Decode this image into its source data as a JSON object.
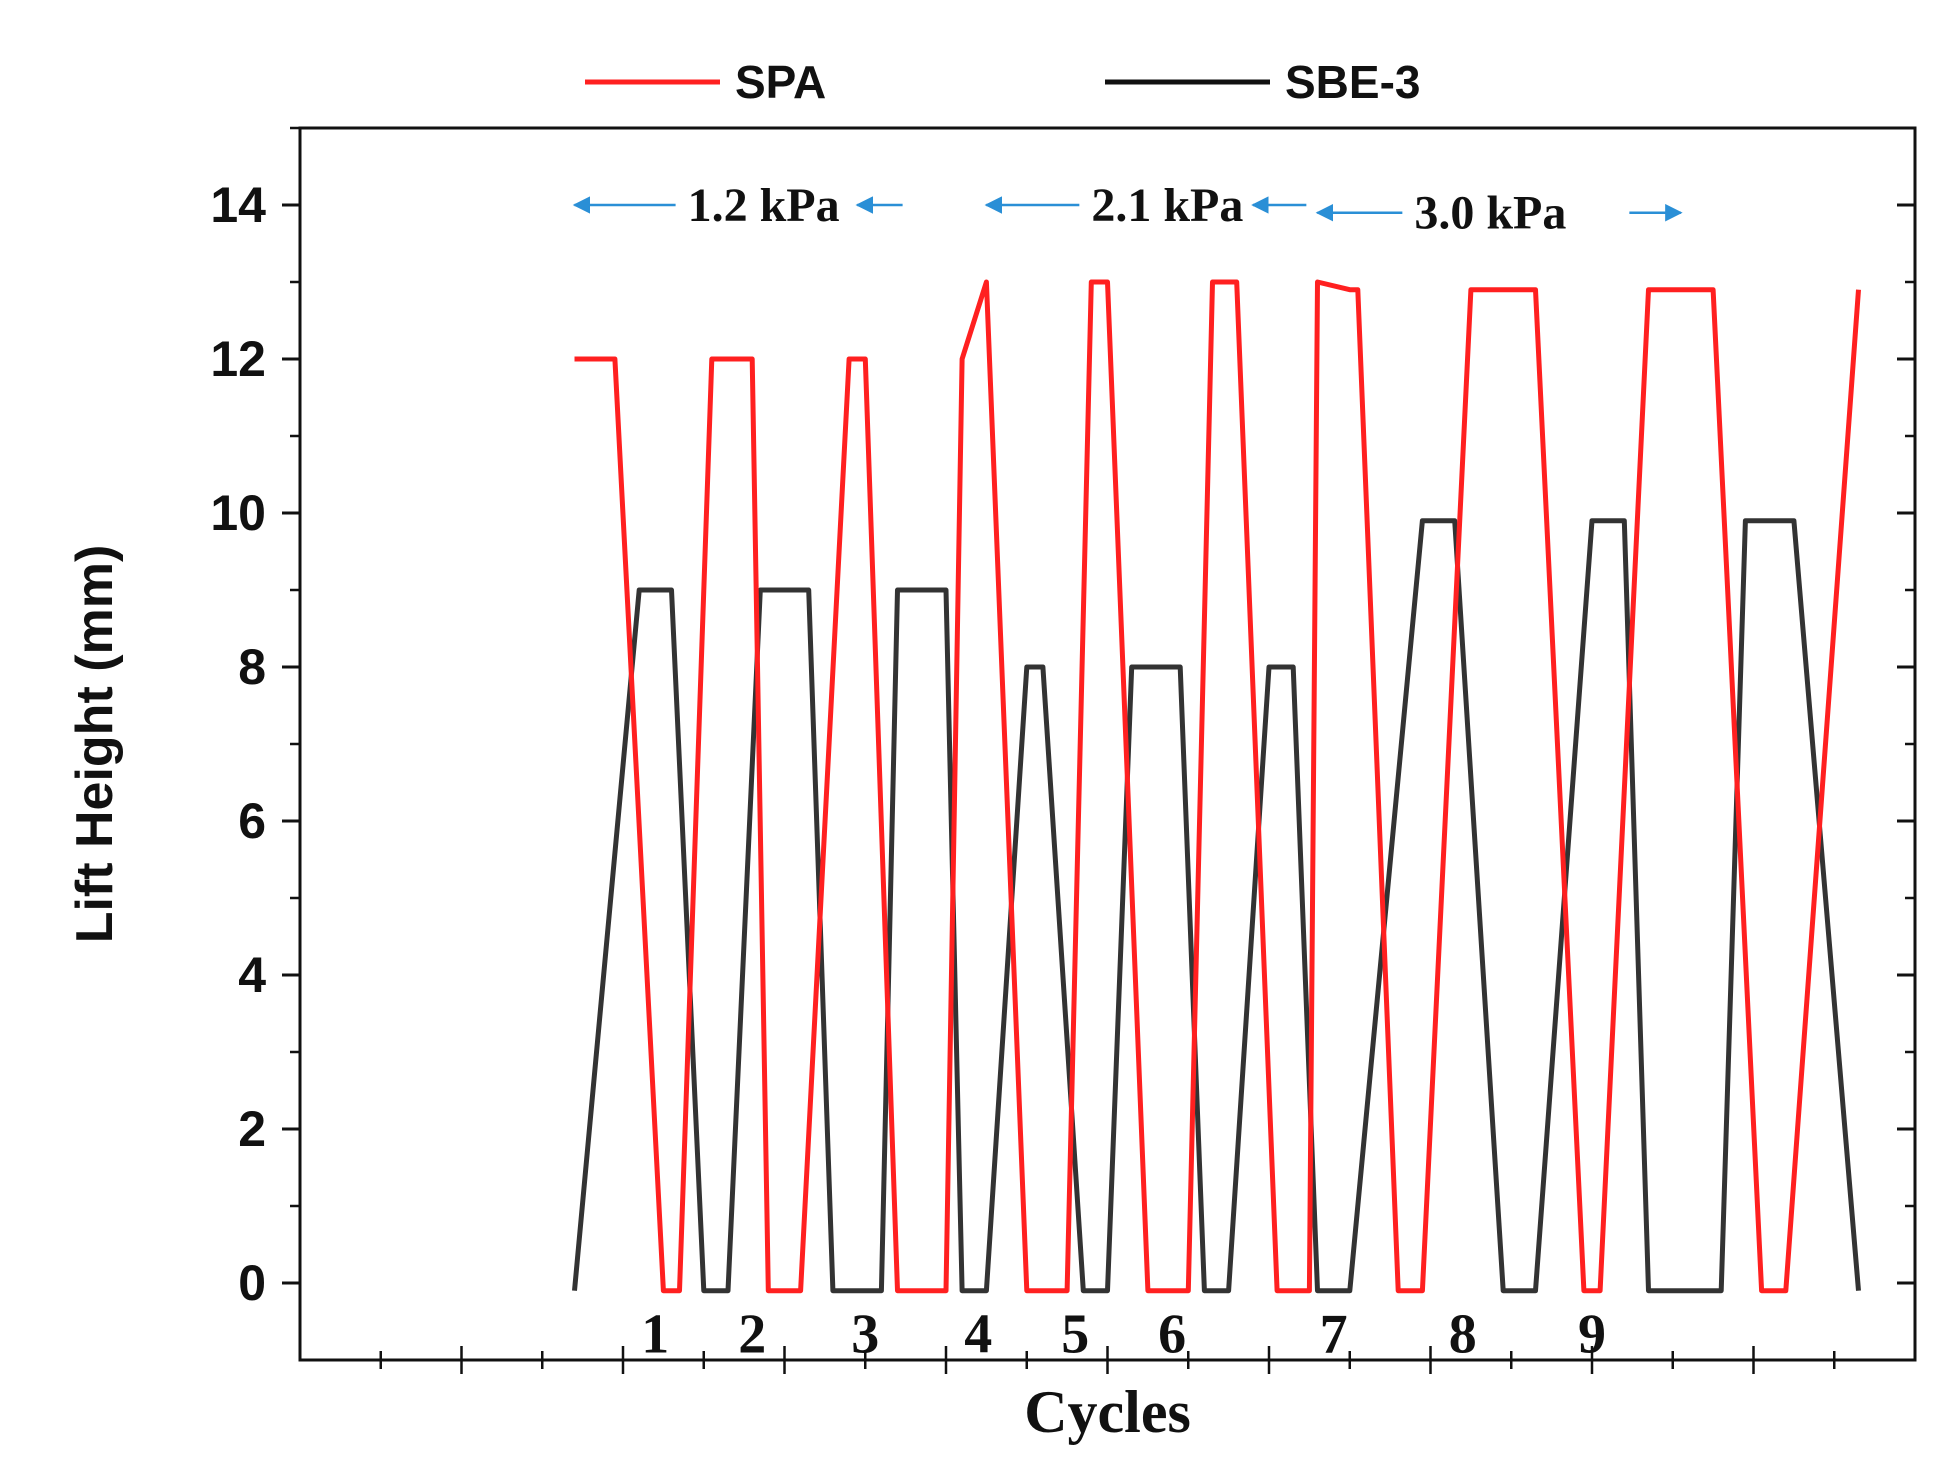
{
  "chart_data": {
    "type": "line",
    "title": "",
    "xlabel": "Cycles",
    "ylabel": "Lift Height (mm)",
    "ylim": [
      -1,
      15
    ],
    "yticks": [
      0,
      2,
      4,
      6,
      8,
      10,
      12,
      14
    ],
    "xlim": [
      0,
      20
    ],
    "grid": false,
    "legend_position": "top",
    "colors": {
      "SPA": "#ff2020",
      "SBE-3": "#333333",
      "arrow": "#2a8fd6"
    },
    "series": [
      {
        "name": "SPA",
        "x": [
          3.4,
          3.9,
          4.5,
          4.7,
          5.1,
          5.6,
          5.8,
          6.2,
          6.8,
          7.0,
          7.4,
          8.0,
          8.2,
          8.5,
          8.5,
          9.0,
          9.5,
          9.8,
          10.0,
          10.5,
          11.0,
          11.3,
          11.6,
          12.1,
          12.5,
          12.6,
          13.0,
          13.1,
          13.6,
          13.9,
          14.5,
          15.3,
          15.9,
          16.1,
          16.7,
          17.5,
          18.1,
          18.4,
          19.3
        ],
        "y": [
          12,
          12,
          -0.1,
          -0.1,
          12,
          12,
          -0.1,
          -0.1,
          12,
          12,
          -0.1,
          -0.1,
          12,
          13,
          13,
          -0.1,
          -0.1,
          13,
          13,
          -0.1,
          -0.1,
          13,
          13,
          -0.1,
          -0.1,
          13,
          12.9,
          12.9,
          -0.1,
          -0.1,
          12.9,
          12.9,
          -0.1,
          -0.1,
          12.9,
          12.9,
          -0.1,
          -0.1,
          12.9
        ]
      },
      {
        "name": "SBE-3",
        "x": [
          3.4,
          4.2,
          4.6,
          5.0,
          5.3,
          5.7,
          6.3,
          6.6,
          7.2,
          7.4,
          8.0,
          8.2,
          8.5,
          8.5,
          9.0,
          9.2,
          9.7,
          10.0,
          10.3,
          10.9,
          11.2,
          11.5,
          12.0,
          12.3,
          12.6,
          13.0,
          13.9,
          14.3,
          14.9,
          15.3,
          16.0,
          16.4,
          16.7,
          17.6,
          17.9,
          18.5,
          19.3
        ],
        "y": [
          -0.1,
          9,
          9,
          -0.1,
          -0.1,
          9,
          9,
          -0.1,
          -0.1,
          9,
          9,
          -0.1,
          -0.1,
          -0.1,
          8,
          8,
          -0.1,
          -0.1,
          8,
          8,
          -0.1,
          -0.1,
          8,
          8,
          -0.1,
          -0.1,
          9.9,
          9.9,
          -0.1,
          -0.1,
          9.9,
          9.9,
          -0.1,
          -0.1,
          9.9,
          9.9,
          -0.1
        ]
      }
    ],
    "cycle_labels": [
      {
        "text": "1",
        "x": 4.4
      },
      {
        "text": "2",
        "x": 5.6
      },
      {
        "text": "3",
        "x": 7.0
      },
      {
        "text": "4",
        "x": 8.4
      },
      {
        "text": "5",
        "x": 9.6
      },
      {
        "text": "6",
        "x": 10.8
      },
      {
        "text": "7",
        "x": 12.8
      },
      {
        "text": "8",
        "x": 14.4
      },
      {
        "text": "9",
        "x": 16.0
      }
    ],
    "annotations": [
      {
        "text": "1.2 kPa",
        "x1": 3.3,
        "x2": 7.0,
        "tx": 4.8,
        "y": 14
      },
      {
        "text": "2.1 kPa",
        "x1": 8.4,
        "x2": 11.9,
        "tx": 9.8,
        "y": 14
      },
      {
        "text": "3.0 kPa",
        "x1": 12.5,
        "x2": 17.2,
        "tx": 13.8,
        "y": 13.9
      }
    ]
  }
}
